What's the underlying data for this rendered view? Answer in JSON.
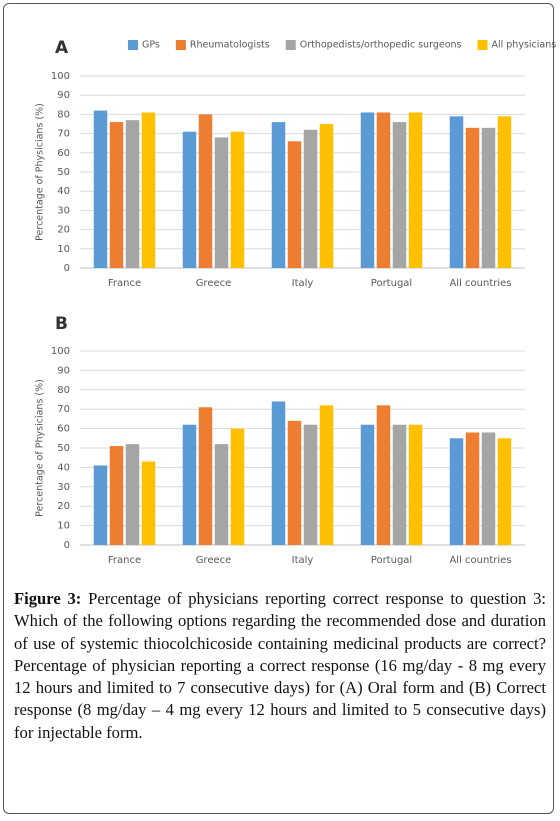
{
  "chart_data": [
    {
      "type": "bar",
      "panel": "A",
      "ylabel": "Percentage of Physicians (%)",
      "categories": [
        "France",
        "Greece",
        "Italy",
        "Portugal",
        "All countries"
      ],
      "series": [
        {
          "name": "GPs",
          "color": "#5b9bd5",
          "values": [
            82,
            71,
            76,
            81,
            79
          ]
        },
        {
          "name": "Rheumatologists",
          "color": "#ed7d31",
          "values": [
            76,
            80,
            66,
            81,
            73
          ]
        },
        {
          "name": "Orthopedists/orthopedic surgeons",
          "color": "#a5a5a5",
          "values": [
            77,
            68,
            72,
            76,
            73
          ]
        },
        {
          "name": "All physicians",
          "color": "#ffc000",
          "values": [
            81,
            71,
            75,
            81,
            79
          ]
        }
      ],
      "ylim": [
        0,
        100
      ],
      "yticks": [
        0,
        10,
        20,
        30,
        40,
        50,
        60,
        70,
        80,
        90,
        100
      ],
      "grid": true,
      "legend": "top"
    },
    {
      "type": "bar",
      "panel": "B",
      "ylabel": "Percentage of Physicians (%)",
      "categories": [
        "France",
        "Greece",
        "Italy",
        "Portugal",
        "All countries"
      ],
      "series": [
        {
          "color": "#5b9bd5",
          "values": [
            41,
            62,
            74,
            62,
            55
          ]
        },
        {
          "color": "#ed7d31",
          "values": [
            51,
            71,
            64,
            72,
            58
          ]
        },
        {
          "color": "#a5a5a5",
          "values": [
            52,
            52,
            62,
            62,
            58
          ]
        },
        {
          "color": "#ffc000",
          "values": [
            43,
            60,
            72,
            62,
            55
          ]
        }
      ],
      "ylim": [
        0,
        100
      ],
      "yticks": [
        0,
        10,
        20,
        30,
        40,
        50,
        60,
        70,
        80,
        90,
        100
      ],
      "grid": true
    }
  ],
  "caption": {
    "label": "Figure 3:",
    "text": "Percentage of physicians reporting correct response to question 3: Which of the following options regarding the recommended dose and duration of use of systemic thiocolchicoside containing medicinal products are correct? Percentage of physician reporting a correct response (16 mg/day - 8 mg every 12 hours and limited to 7 consecutive days) for (A) Oral form and (B) Correct response (8 mg/day – 4 mg every 12 hours and limited to 5 consecutive days) for injectable form."
  }
}
